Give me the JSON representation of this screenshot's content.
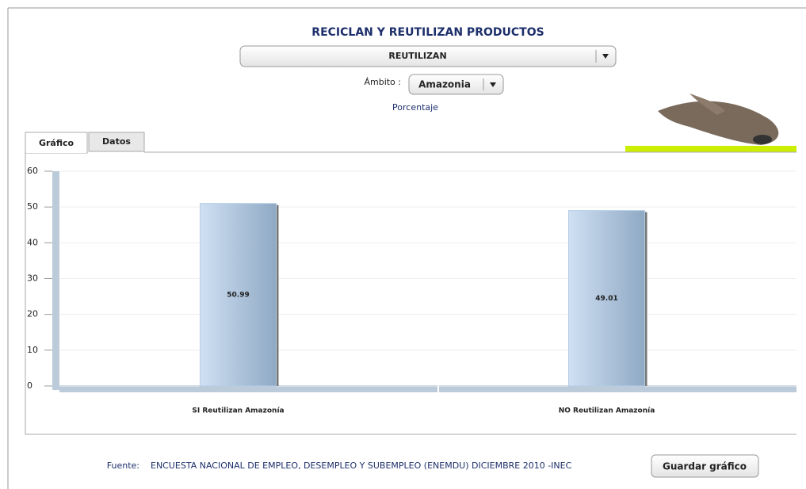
{
  "header": {
    "title": "RECICLAN Y REUTILIZAN PRODUCTOS",
    "selector": "REUTILIZAN",
    "scope_label": "Ámbito :",
    "scope": "Amazonia",
    "unit": "Porcentaje"
  },
  "tabs": [
    "Gráfico",
    "Datos"
  ],
  "chart_data": {
    "type": "bar",
    "categories": [
      "SI Reutilizan Amazonía",
      "NO Reutilizan Amazonía"
    ],
    "values": [
      50.99,
      49.01
    ],
    "color": "#b4cce6",
    "ylim": [
      0,
      60
    ],
    "yticks": [
      0,
      10,
      20,
      30,
      40,
      50,
      60
    ],
    "grid": true
  },
  "footer": {
    "source_label": "Fuente:",
    "source": "ENCUESTA NACIONAL DE EMPLEO, DESEMPLEO Y SUBEMPLEO (ENEMDU) DICIEMBRE 2010 -INEC",
    "button": "Guardar gráfico"
  }
}
